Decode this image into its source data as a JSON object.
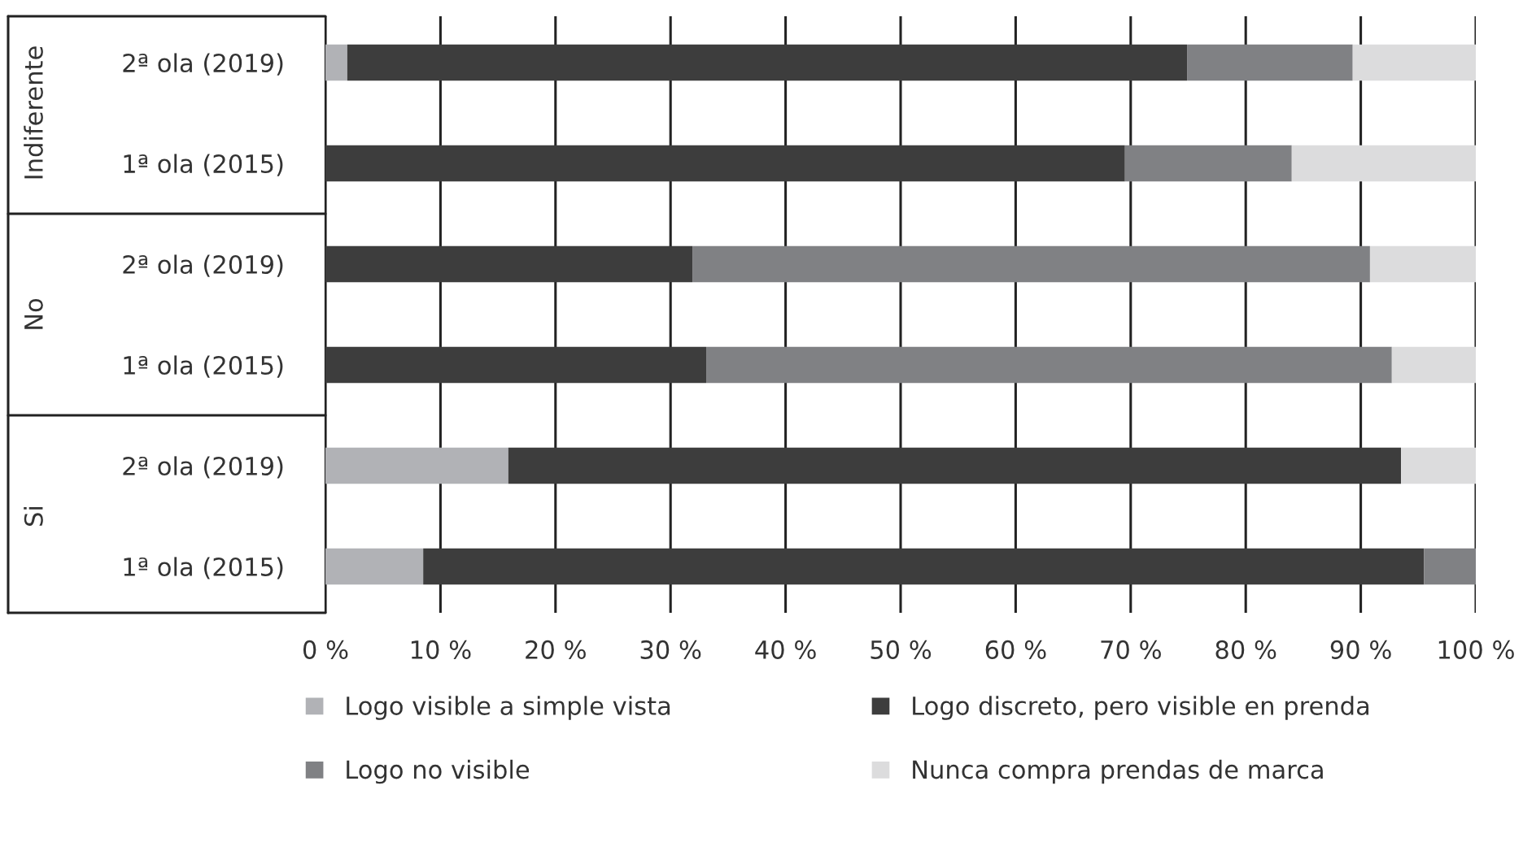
{
  "chart_data": {
    "type": "bar",
    "orientation": "horizontal",
    "stacked": true,
    "categories": [
      "2ª ola (2019)",
      "1ª ola (2015)",
      "2ª ola (2019)",
      "1ª ola (2015)",
      "2ª ola (2019)",
      "1ª ola (2015)"
    ],
    "annotations": [
      "Indiferente",
      "No",
      "Si"
    ],
    "series": [
      {
        "name": "Logo visible a simple vista",
        "color": "#b1b2b6",
        "values": [
          1.9,
          0,
          0,
          0,
          15.9,
          8.5
        ]
      },
      {
        "name": "Logo discreto, pero visible en prenda",
        "color": "#3d3d3d",
        "values": [
          73.0,
          69.5,
          31.9,
          33.1,
          77.6,
          87.0
        ]
      },
      {
        "name": "Logo no visible",
        "color": "#808184",
        "values": [
          14.4,
          14.5,
          58.9,
          59.6,
          0,
          4.5
        ]
      },
      {
        "name": "Nunca compra prendas de marca",
        "color": "#dcdcdd",
        "values": [
          10.7,
          16.0,
          9.2,
          7.3,
          6.5,
          0
        ]
      }
    ],
    "xlim": [
      0,
      100
    ],
    "xticks": [
      {
        "value": 0,
        "label": "0 %"
      },
      {
        "value": 10,
        "label": "10 %"
      },
      {
        "value": 20,
        "label": "20 %"
      },
      {
        "value": 30,
        "label": "30 %"
      },
      {
        "value": 40,
        "label": "40 %"
      },
      {
        "value": 50,
        "label": "50 %"
      },
      {
        "value": 60,
        "label": "60 %"
      },
      {
        "value": 70,
        "label": "70 %"
      },
      {
        "value": 80,
        "label": "80 %"
      },
      {
        "value": 90,
        "label": "90 %"
      },
      {
        "value": 100,
        "label": "100 %"
      }
    ],
    "grid": "x",
    "legend": "bottom"
  }
}
